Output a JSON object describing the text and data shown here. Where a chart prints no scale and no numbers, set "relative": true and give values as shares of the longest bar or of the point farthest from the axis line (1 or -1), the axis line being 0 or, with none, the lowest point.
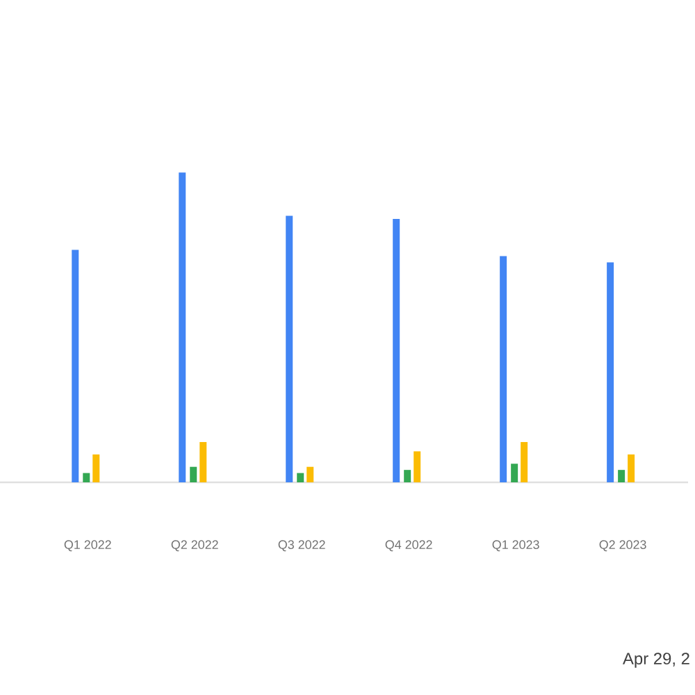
{
  "chart_data": {
    "type": "bar",
    "relative": true,
    "categories": [
      "Q1 2022",
      "Q2 2022",
      "Q3 2022",
      "Q4 2022",
      "Q1 2023",
      "Q2 2023"
    ],
    "series": [
      {
        "color": "#4285f4",
        "values": [
          0.75,
          1,
          0.86,
          0.85,
          0.73,
          0.71
        ]
      },
      {
        "color": "#34a853",
        "values": [
          0.03,
          0.05,
          0.03,
          0.04,
          0.06,
          0.04
        ]
      },
      {
        "color": "#fbbc04",
        "values": [
          0.09,
          0.13,
          0.05,
          0.1,
          0.13,
          0.09
        ]
      }
    ],
    "annotations": [
      "Apr 29, 2"
    ]
  }
}
